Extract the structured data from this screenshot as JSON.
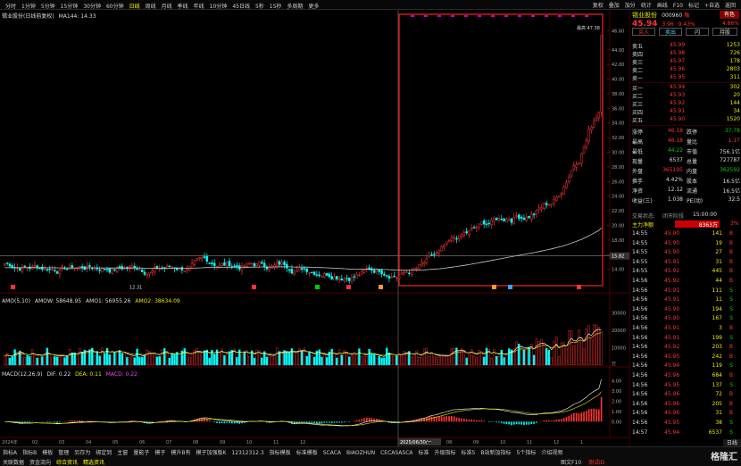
{
  "periods": [
    "分时",
    "1分钟",
    "5分钟",
    "15分钟",
    "30分钟",
    "60分钟",
    "日线",
    "周线",
    "月线",
    "季线",
    "年线",
    "10分钟",
    "45日线",
    "5秒",
    "15秒",
    "多周期",
    "更多"
  ],
  "active_period": "日线",
  "tools": [
    "复权",
    "叠加",
    "加分",
    "统计",
    "画线",
    "F10",
    "标记",
    "+自选",
    "返回"
  ],
  "main_legend": {
    "title": "锡业股份(日线前复权)",
    "ma": "MA144: 14.33"
  },
  "price_ticks": [
    "46.60",
    "44.00",
    "42.00",
    "40.00",
    "38.00",
    "36.00",
    "34.00",
    "32.00",
    "30.00",
    "28.00",
    "26.00",
    "24.00",
    "22.00",
    "20.00",
    "18.00",
    "16.00",
    "14.00"
  ],
  "crosshair_price": "15.82",
  "low_marker": "12.31",
  "high_marker": "最高 47.38",
  "vol_legend": {
    "title": "AMO(5,10)",
    "amow": "AMOW: 58648.95",
    "amo1": "AMO1: 56955.26",
    "amo2": "AMO2: 38634.09"
  },
  "vol_ticks": [
    "30000",
    "20000",
    "10000"
  ],
  "vol_unit": "万",
  "macd_legend": {
    "title": "MACD(12,26,9)",
    "dif": "DIF: 0.22",
    "dea": "DEA: 0.11",
    "macd": "MACD: 0.22"
  },
  "macd_ticks": [
    "4.00",
    "3.00",
    "2.00",
    "1.00",
    "0.00"
  ],
  "date_axis": [
    "2024年",
    "02",
    "03",
    "04",
    "05",
    "06",
    "07",
    "08",
    "09",
    "10",
    "11",
    "12",
    "2025/06/30/一",
    "08",
    "09",
    "10",
    "11",
    "12",
    "1"
  ],
  "stock": {
    "name": "锡业股份",
    "code": "000960",
    "tag": "融",
    "rank": "有色",
    "price": "45.94",
    "change": "3.96",
    "pct": "9.43%",
    "pct_small": "4.86%"
  },
  "actions": [
    "买入",
    "卖出",
    "闪",
    "持股"
  ],
  "asks": [
    {
      "label": "卖五",
      "price": "45.99",
      "vol": "1253"
    },
    {
      "label": "卖四",
      "price": "45.98",
      "vol": "726"
    },
    {
      "label": "卖三",
      "price": "45.97",
      "vol": "178"
    },
    {
      "label": "卖二",
      "price": "45.96",
      "vol": "2803"
    },
    {
      "label": "卖一",
      "price": "45.95",
      "vol": "311"
    }
  ],
  "bids": [
    {
      "label": "买一",
      "price": "45.94",
      "vol": "302"
    },
    {
      "label": "买二",
      "price": "45.93",
      "vol": "20"
    },
    {
      "label": "买三",
      "price": "45.92",
      "vol": "144"
    },
    {
      "label": "买四",
      "price": "45.91",
      "vol": "34"
    },
    {
      "label": "买五",
      "price": "45.90",
      "vol": "1520"
    }
  ],
  "stats": [
    {
      "l1": "涨停",
      "v1": "46.18",
      "l2": "跌停",
      "v2": "37.78"
    },
    {
      "l1": "最高",
      "v1": "46.18",
      "l2": "量比",
      "v2": "1.17"
    },
    {
      "l1": "最低",
      "v1": "44.22",
      "l2": "市值",
      "v2": "756.1亿"
    },
    {
      "l1": "现量",
      "v1": "6537",
      "l2": "总量",
      "v2": "727787"
    },
    {
      "l1": "外盘",
      "v1": "365195",
      "l2": "内盘",
      "v2": "362592"
    },
    {
      "l1": "换手",
      "v1": "4.42%",
      "l2": "股本",
      "v2": "16.5亿"
    },
    {
      "l1": "净资",
      "v1": "12.12",
      "l2": "流通",
      "v2": "16.5亿"
    },
    {
      "l1": "收益(三)",
      "v1": "1.038",
      "l2": "PE(动)",
      "v2": "32.5"
    }
  ],
  "trade_status": {
    "label": "交易状态:",
    "value": "闭市阶段",
    "time": "15:00:00"
  },
  "main_net": {
    "label": "主力净额",
    "value": "8363万",
    "pct": "3%"
  },
  "ticks": [
    {
      "t": "14:55",
      "p": "45.90",
      "v": "141",
      "s": "B"
    },
    {
      "t": "14:55",
      "p": "45.90",
      "v": "19",
      "s": "B"
    },
    {
      "t": "14:55",
      "p": "45.90",
      "v": "27",
      "s": "B"
    },
    {
      "t": "14:55",
      "p": "45.91",
      "v": "31",
      "s": "B"
    },
    {
      "t": "14:55",
      "p": "45.92",
      "v": "445",
      "s": "B"
    },
    {
      "t": "14:56",
      "p": "45.92",
      "v": "44",
      "s": "B"
    },
    {
      "t": "14:56",
      "p": "45.91",
      "v": "111",
      "s": "S"
    },
    {
      "t": "14:56",
      "p": "45.91",
      "v": "11",
      "s": "S"
    },
    {
      "t": "14:56",
      "p": "45.90",
      "v": "194",
      "s": "S"
    },
    {
      "t": "14:56",
      "p": "45.90",
      "v": "167",
      "s": "S"
    },
    {
      "t": "14:56",
      "p": "45.91",
      "v": "3",
      "s": "B"
    },
    {
      "t": "14:56",
      "p": "45.91",
      "v": "199",
      "s": "S"
    },
    {
      "t": "14:56",
      "p": "45.92",
      "v": "203",
      "s": "B"
    },
    {
      "t": "14:56",
      "p": "45.95",
      "v": "242",
      "s": "B"
    },
    {
      "t": "14:56",
      "p": "45.94",
      "v": "119",
      "s": "S"
    },
    {
      "t": "14:56",
      "p": "45.96",
      "v": "684",
      "s": "B"
    },
    {
      "t": "14:56",
      "p": "45.95",
      "v": "137",
      "s": "S"
    },
    {
      "t": "14:56",
      "p": "45.96",
      "v": "72",
      "s": "B"
    },
    {
      "t": "14:56",
      "p": "45.96",
      "v": "205",
      "s": "B"
    },
    {
      "t": "14:56",
      "p": "45.96",
      "v": "31",
      "s": "B"
    },
    {
      "t": "14:56",
      "p": "45.95",
      "v": "38",
      "s": "S"
    },
    {
      "t": "14:57",
      "p": "45.94",
      "v": "6537",
      "s": "S"
    }
  ],
  "side_tab": "日线",
  "bottom_row1": [
    "指标A",
    "指标B",
    "模板",
    "管理",
    "另存为",
    "绑定到",
    "主窗",
    "量能子",
    "模子",
    "模升B有",
    "模子加强版K",
    "12312312.3",
    "指标模板",
    "标准模板",
    "SCACA",
    "BIAOZHUN",
    "CECASASCA",
    "标准",
    "升级指标",
    "标准5",
    "B站新加指标",
    "5个指标",
    "介绍视频"
  ],
  "bottom_row2": [
    "关联数据",
    "资金流向",
    "综合资讯",
    "精选资讯"
  ],
  "status_right": "图文F10",
  "status_tag": "测试ID",
  "logo_text": "格隆汇",
  "colors": {
    "up": "#ff3333",
    "down": "#00ffff",
    "bg": "#000000",
    "highlight_box": "#ff2020",
    "ma": "#c8c8c8"
  }
}
